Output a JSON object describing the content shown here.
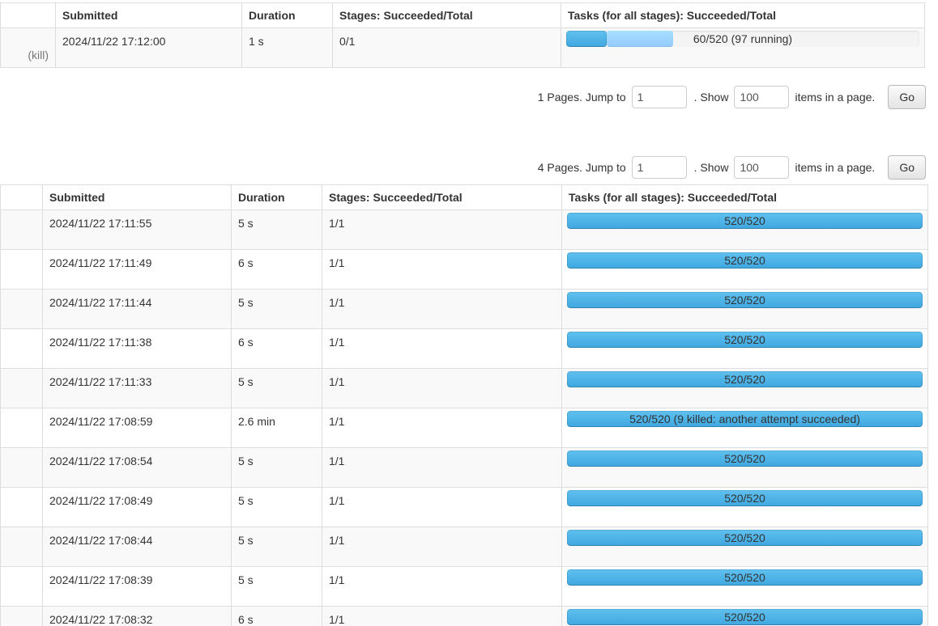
{
  "colors": {
    "progress_completed_top": "#60c1ef",
    "progress_completed_bottom": "#3fa7e0",
    "progress_started_top": "#a4e0ff",
    "progress_started_bottom": "#94cafe",
    "progress_track": "#f4f4f4",
    "table_border": "#dddddd",
    "striped_row": "#f9f9f9"
  },
  "active_table": {
    "headers": [
      "",
      "Submitted",
      "Duration",
      "Stages: Succeeded/Total",
      "Tasks (for all stages): Succeeded/Total"
    ],
    "row": {
      "kill_label": "(kill)",
      "submitted": "2024/11/22 17:12:00",
      "duration": "1 s",
      "stages": "0/1",
      "tasks_label": "60/520 (97 running)",
      "tasks_completed_pct": 11.5,
      "tasks_running_pct": 18.7
    }
  },
  "pagination_active": {
    "pages_label": "1 Pages. Jump to",
    "jump_value": "1",
    "show_label": ". Show",
    "show_value": "100",
    "items_label": "items in a page.",
    "go_label": "Go"
  },
  "pagination_completed": {
    "pages_label": "4 Pages. Jump to",
    "jump_value": "1",
    "show_label": ". Show",
    "show_value": "100",
    "items_label": "items in a page.",
    "go_label": "Go"
  },
  "completed_table": {
    "headers": [
      "",
      "Submitted",
      "Duration",
      "Stages: Succeeded/Total",
      "Tasks (for all stages): Succeeded/Total"
    ],
    "rows": [
      {
        "submitted": "2024/11/22 17:11:55",
        "duration": "5 s",
        "stages": "1/1",
        "tasks_label": "520/520",
        "tasks_completed_pct": 100,
        "tasks_running_pct": 0
      },
      {
        "submitted": "2024/11/22 17:11:49",
        "duration": "6 s",
        "stages": "1/1",
        "tasks_label": "520/520",
        "tasks_completed_pct": 100,
        "tasks_running_pct": 0
      },
      {
        "submitted": "2024/11/22 17:11:44",
        "duration": "5 s",
        "stages": "1/1",
        "tasks_label": "520/520",
        "tasks_completed_pct": 100,
        "tasks_running_pct": 0
      },
      {
        "submitted": "2024/11/22 17:11:38",
        "duration": "6 s",
        "stages": "1/1",
        "tasks_label": "520/520",
        "tasks_completed_pct": 100,
        "tasks_running_pct": 0
      },
      {
        "submitted": "2024/11/22 17:11:33",
        "duration": "5 s",
        "stages": "1/1",
        "tasks_label": "520/520",
        "tasks_completed_pct": 100,
        "tasks_running_pct": 0
      },
      {
        "submitted": "2024/11/22 17:08:59",
        "duration": "2.6 min",
        "stages": "1/1",
        "tasks_label": "520/520 (9 killed: another attempt succeeded)",
        "tasks_completed_pct": 100,
        "tasks_running_pct": 0
      },
      {
        "submitted": "2024/11/22 17:08:54",
        "duration": "5 s",
        "stages": "1/1",
        "tasks_label": "520/520",
        "tasks_completed_pct": 100,
        "tasks_running_pct": 0
      },
      {
        "submitted": "2024/11/22 17:08:49",
        "duration": "5 s",
        "stages": "1/1",
        "tasks_label": "520/520",
        "tasks_completed_pct": 100,
        "tasks_running_pct": 0
      },
      {
        "submitted": "2024/11/22 17:08:44",
        "duration": "5 s",
        "stages": "1/1",
        "tasks_label": "520/520",
        "tasks_completed_pct": 100,
        "tasks_running_pct": 0
      },
      {
        "submitted": "2024/11/22 17:08:39",
        "duration": "5 s",
        "stages": "1/1",
        "tasks_label": "520/520",
        "tasks_completed_pct": 100,
        "tasks_running_pct": 0
      },
      {
        "submitted": "2024/11/22 17:08:32",
        "duration": "6 s",
        "stages": "1/1",
        "tasks_label": "520/520",
        "tasks_completed_pct": 100,
        "tasks_running_pct": 0
      }
    ]
  }
}
